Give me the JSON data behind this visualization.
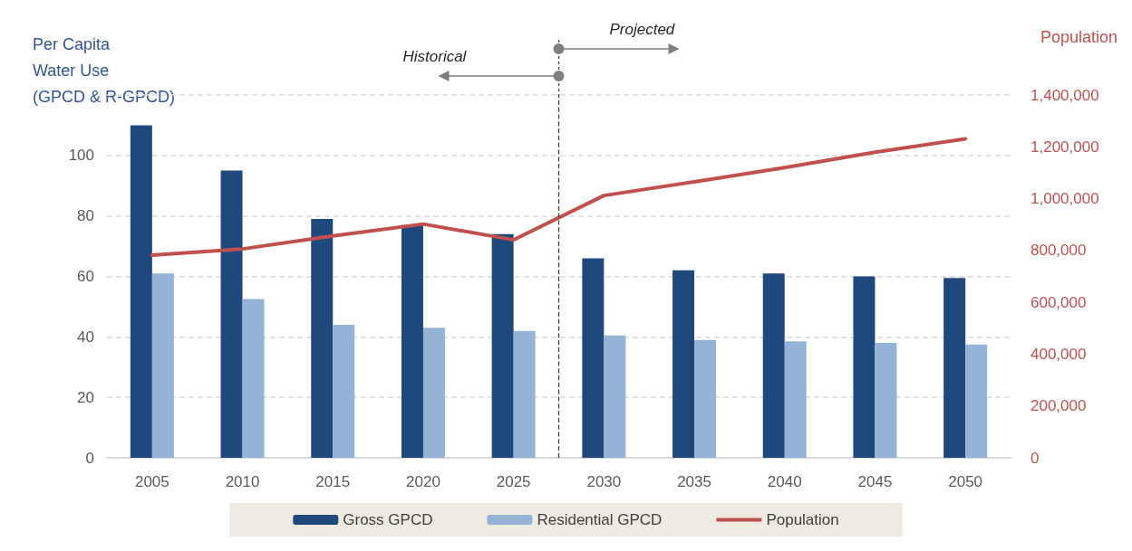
{
  "chart_data": {
    "type": "bar",
    "x": [
      2005,
      2010,
      2015,
      2020,
      2025,
      2030,
      2035,
      2040,
      2045,
      2050
    ],
    "xlim": [
      2002.5,
      2052.5
    ],
    "xticks": [
      2005,
      2010,
      2015,
      2020,
      2025,
      2030,
      2035,
      2040,
      2045,
      2050
    ],
    "ylabel": "Per Capita\nWater Use\n(GPCD & R-GPCD)",
    "y2label": "Population",
    "ylim": [
      0,
      120
    ],
    "yticks": [
      0,
      20,
      40,
      60,
      80,
      100,
      {
        "value": 120,
        "label": null
      }
    ],
    "y2lim": [
      0,
      1400000
    ],
    "y2ticks": [
      {
        "value": 0,
        "label": "0"
      },
      {
        "value": 200000,
        "label": "200,000"
      },
      {
        "value": 400000,
        "label": "400,000"
      },
      {
        "value": 600000,
        "label": "600,000"
      },
      {
        "value": 800000,
        "label": "800,000"
      },
      {
        "value": 1000000,
        "label": "1,000,000"
      },
      {
        "value": 1200000,
        "label": "1,200,000"
      },
      {
        "value": 1400000,
        "label": "1,400,000"
      }
    ],
    "series": [
      {
        "name": "Gross GPCD",
        "color": "#1f497d",
        "values": [
          110,
          95,
          79,
          77,
          74,
          66,
          62,
          61,
          60,
          59.5
        ]
      },
      {
        "name": "Residential GPCD",
        "color": "#95b3d7",
        "values": [
          61,
          52.5,
          44,
          43,
          42,
          40.5,
          39,
          38.5,
          38,
          37.5
        ]
      },
      {
        "name": "Population",
        "type": "line",
        "axis": "y2",
        "color": "#c0504d",
        "marker": "none",
        "values": [
          782000,
          806000,
          856000,
          902000,
          841000,
          1012000,
          1065000,
          1120000,
          1179000,
          1231000
        ]
      }
    ],
    "ref_lines": [
      {
        "axis": "x",
        "value": 2027.5,
        "color": "#404040",
        "line_style": "dashed"
      }
    ],
    "annotations": [
      "Historical",
      "Projected"
    ],
    "grid": "y",
    "legend": "bottom"
  }
}
